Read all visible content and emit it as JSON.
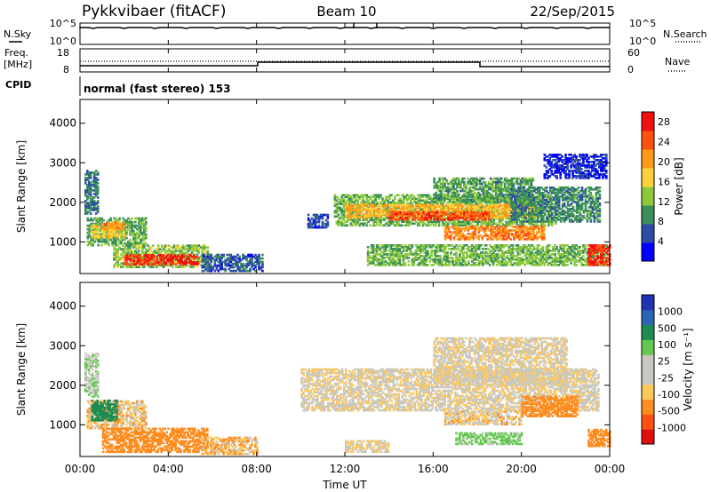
{
  "header": {
    "station": "Pykkvibaer (fitACF)",
    "beam": "Beam 10",
    "date": "22/Sep/2015"
  },
  "top_panels": {
    "nsky_label": "N.Sky",
    "nsearch_label": "N.Search",
    "noise_ticks": [
      "10^5",
      "10^0"
    ],
    "freq_label": "Freq.",
    "freq_unit": "[MHz]",
    "freq_ticks": [
      "18",
      "8"
    ],
    "nave_label": "Nave",
    "nave_ticks": [
      "60",
      "0"
    ],
    "cpid_label": "CPID",
    "cpid_text": "normal (fast stereo) 153"
  },
  "colors": {
    "power_scale": [
      "#0000ff",
      "#2d4ca6",
      "#3a8f5a",
      "#8cc83a",
      "#ffd23c",
      "#ff9a14",
      "#ff5010",
      "#f01010"
    ],
    "velocity_scale": [
      "#e01010",
      "#ff5014",
      "#ff8c1e",
      "#ffc85a",
      "#c8c8c0",
      "#c8c8c0",
      "#64c850",
      "#1e8c50",
      "#2c64b4",
      "#1e32b4"
    ]
  },
  "x_axis": {
    "label": "Time UT",
    "ticks": [
      "00:00",
      "04:00",
      "08:00",
      "12:00",
      "16:00",
      "20:00",
      "00:00"
    ]
  },
  "chart_data": [
    {
      "type": "heatmap",
      "ylabel": "Slant Range [km]",
      "yticks": [
        "1000",
        "2000",
        "3000",
        "4000"
      ],
      "ylim": [
        200,
        4600
      ],
      "xlim_hours": [
        0,
        24
      ],
      "colorbar": {
        "label": "Power [dB]",
        "ticks": [
          "4",
          "8",
          "12",
          "16",
          "20",
          "24",
          "28"
        ],
        "range": [
          0,
          30
        ]
      },
      "patches": [
        {
          "t0": 0.3,
          "t1": 3.0,
          "r0": 900,
          "r1": 1600,
          "v": 11
        },
        {
          "t0": 0.5,
          "t1": 2.0,
          "r0": 1100,
          "r1": 1450,
          "v": 17
        },
        {
          "t0": 1.5,
          "t1": 5.8,
          "r0": 350,
          "r1": 900,
          "v": 13
        },
        {
          "t0": 2.0,
          "t1": 5.3,
          "r0": 420,
          "r1": 650,
          "v": 27
        },
        {
          "t0": 1.0,
          "t1": 2.0,
          "r0": 1300,
          "r1": 1500,
          "v": 21
        },
        {
          "t0": 0.2,
          "t1": 0.8,
          "r0": 1700,
          "r1": 2800,
          "v": 8
        },
        {
          "t0": 5.5,
          "t1": 8.3,
          "r0": 250,
          "r1": 700,
          "v": 6
        },
        {
          "t0": 10.3,
          "t1": 11.2,
          "r0": 1350,
          "r1": 1700,
          "v": 5
        },
        {
          "t0": 11.5,
          "t1": 21.5,
          "r0": 1400,
          "r1": 2200,
          "v": 12
        },
        {
          "t0": 12.0,
          "t1": 20.5,
          "r0": 1600,
          "r1": 1950,
          "v": 19
        },
        {
          "t0": 14.0,
          "t1": 18.5,
          "r0": 1550,
          "r1": 1750,
          "v": 25
        },
        {
          "t0": 16.0,
          "t1": 20.5,
          "r0": 2000,
          "r1": 2600,
          "v": 10
        },
        {
          "t0": 19.5,
          "t1": 23.5,
          "r0": 1500,
          "r1": 2400,
          "v": 9
        },
        {
          "t0": 21.0,
          "t1": 23.8,
          "r0": 2600,
          "r1": 3200,
          "v": 4
        },
        {
          "t0": 16.5,
          "t1": 21.0,
          "r0": 1050,
          "r1": 1400,
          "v": 22
        },
        {
          "t0": 13.0,
          "t1": 23.8,
          "r0": 400,
          "r1": 900,
          "v": 12
        },
        {
          "t0": 23.0,
          "t1": 24.0,
          "r0": 400,
          "r1": 900,
          "v": 26
        }
      ]
    },
    {
      "type": "heatmap",
      "ylabel": "Slant Range [km]",
      "yticks": [
        "1000",
        "2000",
        "3000",
        "4000"
      ],
      "ylim": [
        200,
        4600
      ],
      "xlim_hours": [
        0,
        24
      ],
      "colorbar": {
        "label": "Velocity [m s⁻¹]",
        "ticks": [
          "-1000",
          "-500",
          "-100",
          "-25",
          "25",
          "100",
          "500",
          "1000"
        ]
      },
      "patches": [
        {
          "t0": 0.3,
          "t1": 3.0,
          "r0": 900,
          "r1": 1600,
          "v": -50
        },
        {
          "t0": 1.0,
          "t1": 5.8,
          "r0": 300,
          "r1": 900,
          "v": -250
        },
        {
          "t0": 0.5,
          "t1": 1.7,
          "r0": 1100,
          "r1": 1600,
          "v": 600
        },
        {
          "t0": 0.2,
          "t1": 0.8,
          "r0": 1700,
          "r1": 2800,
          "v": 80
        },
        {
          "t0": 5.5,
          "t1": 8.0,
          "r0": 250,
          "r1": 700,
          "v": -80
        },
        {
          "t0": 10.0,
          "t1": 23.5,
          "r0": 1350,
          "r1": 2400,
          "v": 0
        },
        {
          "t0": 16.0,
          "t1": 22.0,
          "r0": 2000,
          "r1": 3200,
          "v": 0
        },
        {
          "t0": 16.5,
          "t1": 20.0,
          "r0": 1000,
          "r1": 1350,
          "v": -40
        },
        {
          "t0": 20.0,
          "t1": 22.5,
          "r0": 1200,
          "r1": 1700,
          "v": -200
        },
        {
          "t0": 17.0,
          "t1": 20.0,
          "r0": 500,
          "r1": 800,
          "v": 150
        },
        {
          "t0": 23.0,
          "t1": 24.0,
          "r0": 450,
          "r1": 900,
          "v": -300
        },
        {
          "t0": 12.0,
          "t1": 14.0,
          "r0": 300,
          "r1": 600,
          "v": 0
        }
      ]
    }
  ]
}
